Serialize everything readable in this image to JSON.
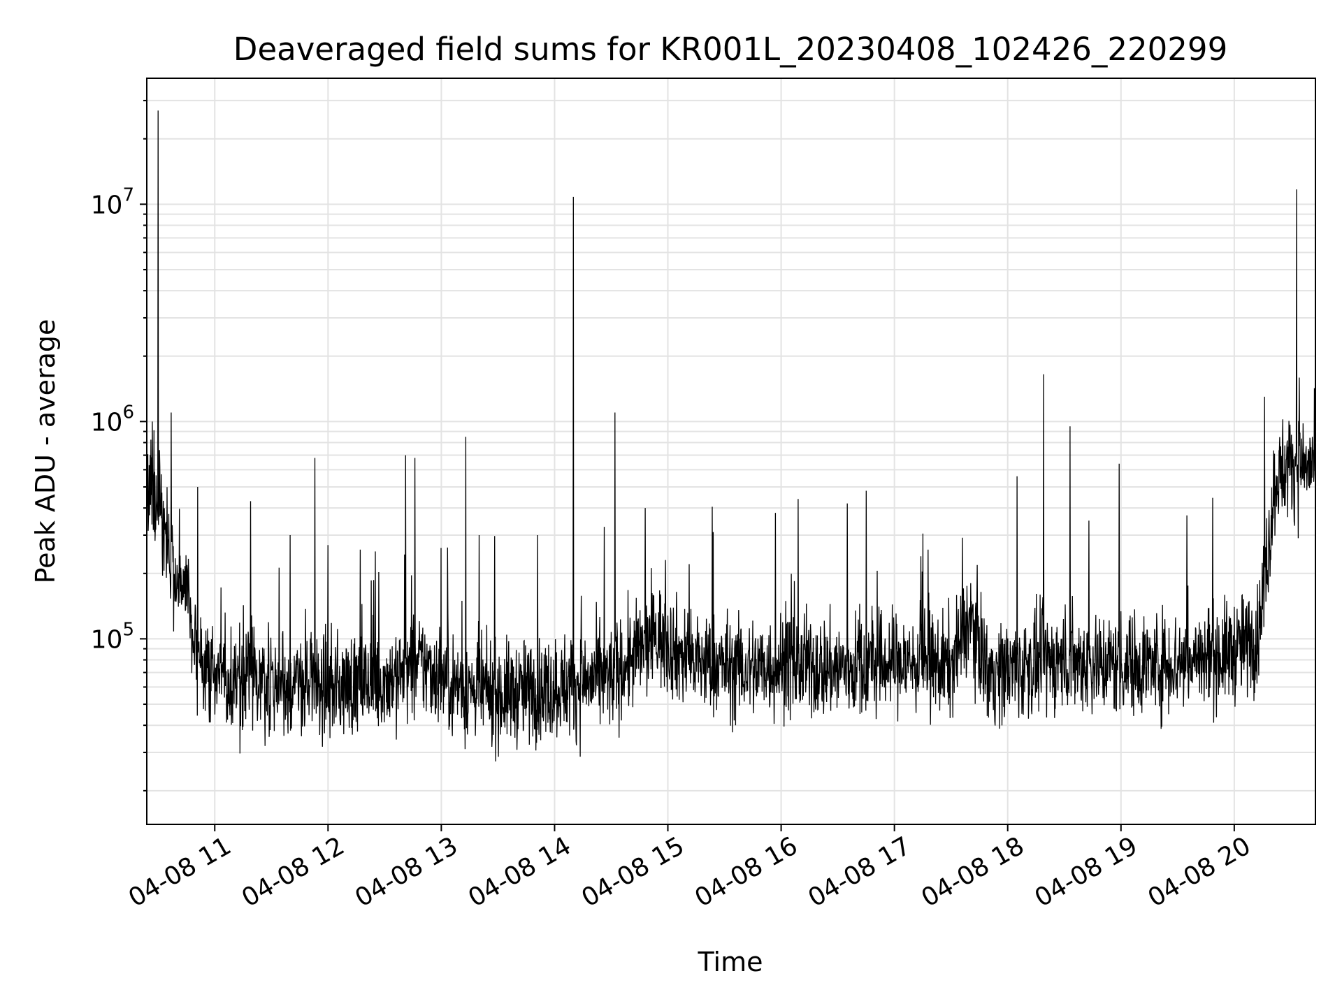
{
  "chart_data": {
    "type": "line",
    "title": "Deaveraged field sums for KR001L_20230408_102426_220299",
    "xlabel": "Time",
    "ylabel": "Peak ADU - average",
    "yscale": "log",
    "ylim": [
      14000,
      38000000
    ],
    "xlim": [
      "04-08 10:24",
      "04-08 20:43"
    ],
    "grid": true,
    "line_color": "#000000",
    "x_ticks": [
      "04-08 11",
      "04-08 12",
      "04-08 13",
      "04-08 14",
      "04-08 15",
      "04-08 16",
      "04-08 17",
      "04-08 18",
      "04-08 19",
      "04-08 20"
    ],
    "y_ticks": [
      {
        "base": "10",
        "exp": "5",
        "value": 100000
      },
      {
        "base": "10",
        "exp": "6",
        "value": 1000000
      },
      {
        "base": "10",
        "exp": "7",
        "value": 10000000
      }
    ],
    "baseline": [
      [
        "04-08 10:24",
        400000
      ],
      [
        "04-08 10:27",
        520000
      ],
      [
        "04-08 10:32",
        380000
      ],
      [
        "04-08 10:37",
        210000
      ],
      [
        "04-08 10:45",
        170000
      ],
      [
        "04-08 10:50",
        90000
      ],
      [
        "04-08 11:00",
        68000
      ],
      [
        "04-08 11:30",
        62000
      ],
      [
        "04-08 12:00",
        60000
      ],
      [
        "04-08 12:30",
        64000
      ],
      [
        "04-08 12:50",
        76000
      ],
      [
        "04-08 13:10",
        60000
      ],
      [
        "04-08 13:30",
        55000
      ],
      [
        "04-08 14:00",
        60000
      ],
      [
        "04-08 14:30",
        66000
      ],
      [
        "04-08 14:55",
        105000
      ],
      [
        "04-08 15:10",
        80000
      ],
      [
        "04-08 15:40",
        72000
      ],
      [
        "04-08 16:00",
        76000
      ],
      [
        "04-08 16:30",
        73000
      ],
      [
        "04-08 17:00",
        78000
      ],
      [
        "04-08 17:30",
        75000
      ],
      [
        "04-08 17:40",
        125000
      ],
      [
        "04-08 17:50",
        70000
      ],
      [
        "04-08 18:30",
        80000
      ],
      [
        "04-08 19:00",
        76000
      ],
      [
        "04-08 19:30",
        78000
      ],
      [
        "04-08 19:55",
        85000
      ],
      [
        "04-08 20:12",
        100000
      ],
      [
        "04-08 20:18",
        260000
      ],
      [
        "04-08 20:22",
        560000
      ],
      [
        "04-08 20:30",
        640000
      ],
      [
        "04-08 20:43",
        620000
      ]
    ],
    "spikes": [
      [
        "04-08 10:30",
        27000000
      ],
      [
        "04-08 10:30",
        2400000
      ],
      [
        "04-08 10:27",
        1000000
      ],
      [
        "04-08 10:37",
        1100000
      ],
      [
        "04-08 10:51",
        500000
      ],
      [
        "04-08 11:19",
        430000
      ],
      [
        "04-08 11:40",
        300000
      ],
      [
        "04-08 11:53",
        680000
      ],
      [
        "04-08 12:00",
        270000
      ],
      [
        "04-08 12:41",
        700000
      ],
      [
        "04-08 12:46",
        680000
      ],
      [
        "04-08 13:13",
        850000
      ],
      [
        "04-08 13:20",
        300000
      ],
      [
        "04-08 13:51",
        300000
      ],
      [
        "04-08 14:10",
        10800000
      ],
      [
        "04-08 14:32",
        1100000
      ],
      [
        "04-08 14:48",
        400000
      ],
      [
        "04-08 15:24",
        310000
      ],
      [
        "04-08 15:57",
        380000
      ],
      [
        "04-08 16:09",
        440000
      ],
      [
        "04-08 16:35",
        420000
      ],
      [
        "04-08 16:45",
        480000
      ],
      [
        "04-08 18:05",
        560000
      ],
      [
        "04-08 18:19",
        1650000
      ],
      [
        "04-08 18:33",
        950000
      ],
      [
        "04-08 18:43",
        350000
      ],
      [
        "04-08 18:59",
        640000
      ],
      [
        "04-08 19:35",
        370000
      ],
      [
        "04-08 20:16",
        1300000
      ],
      [
        "04-08 20:33",
        11700000
      ]
    ]
  }
}
